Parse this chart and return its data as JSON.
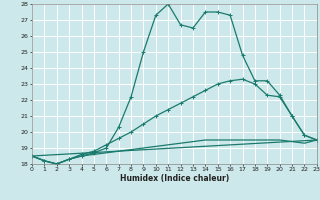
{
  "xlabel": "Humidex (Indice chaleur)",
  "bg_color": "#cde8ea",
  "grid_color": "#ffffff",
  "line_color": "#1a7a6e",
  "xlim": [
    0,
    23
  ],
  "ylim": [
    18,
    28
  ],
  "xticks": [
    0,
    1,
    2,
    3,
    4,
    5,
    6,
    7,
    8,
    9,
    10,
    11,
    12,
    13,
    14,
    15,
    16,
    17,
    18,
    19,
    20,
    21,
    22,
    23
  ],
  "yticks": [
    18,
    19,
    20,
    21,
    22,
    23,
    24,
    25,
    26,
    27,
    28
  ],
  "series": [
    {
      "x": [
        0,
        1,
        2,
        3,
        4,
        5,
        6,
        7,
        8,
        9,
        10,
        11,
        12,
        13,
        14,
        15,
        16,
        17,
        18,
        19,
        20,
        21,
        22,
        23
      ],
      "y": [
        18.5,
        18.2,
        18.0,
        18.3,
        18.5,
        18.7,
        19.0,
        20.3,
        22.2,
        25.0,
        27.3,
        28.0,
        26.7,
        26.5,
        27.5,
        27.5,
        27.3,
        24.8,
        23.2,
        23.2,
        22.3,
        21.0,
        19.8,
        19.5
      ],
      "marker": true
    },
    {
      "x": [
        0,
        1,
        2,
        3,
        4,
        5,
        6,
        7,
        8,
        9,
        10,
        11,
        12,
        13,
        14,
        15,
        16,
        17,
        18,
        19,
        20,
        21,
        22,
        23
      ],
      "y": [
        18.5,
        18.2,
        18.0,
        18.3,
        18.6,
        18.8,
        19.2,
        19.6,
        20.0,
        20.5,
        21.0,
        21.4,
        21.8,
        22.2,
        22.6,
        23.0,
        23.2,
        23.3,
        23.0,
        22.3,
        22.2,
        21.0,
        19.8,
        19.5
      ],
      "marker": true
    },
    {
      "x": [
        0,
        1,
        2,
        3,
        4,
        5,
        6,
        7,
        8,
        9,
        10,
        11,
        12,
        13,
        14,
        15,
        16,
        17,
        18,
        19,
        20,
        21,
        22,
        23
      ],
      "y": [
        18.5,
        18.2,
        18.0,
        18.3,
        18.5,
        18.6,
        18.7,
        18.8,
        18.9,
        19.0,
        19.1,
        19.2,
        19.3,
        19.4,
        19.5,
        19.5,
        19.5,
        19.5,
        19.5,
        19.5,
        19.5,
        19.4,
        19.3,
        19.5
      ],
      "marker": false
    },
    {
      "x": [
        0,
        23
      ],
      "y": [
        18.5,
        19.5
      ],
      "marker": false
    }
  ]
}
